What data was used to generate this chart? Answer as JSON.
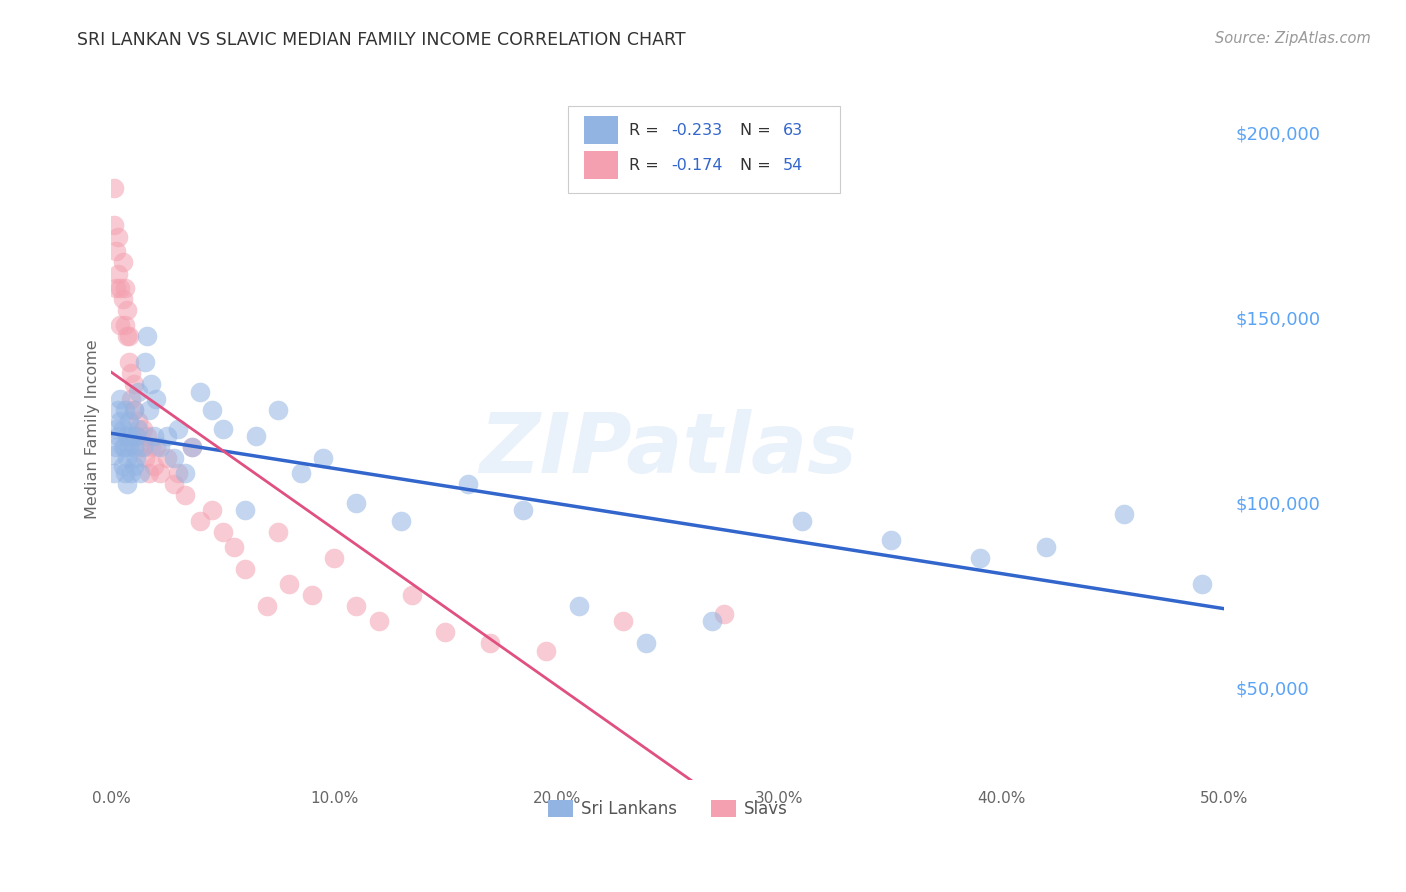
{
  "title": "SRI LANKAN VS SLAVIC MEDIAN FAMILY INCOME CORRELATION CHART",
  "source": "Source: ZipAtlas.com",
  "ylabel": "Median Family Income",
  "watermark": "ZIPatlas",
  "xlim": [
    0.0,
    0.5
  ],
  "ylim": [
    25000,
    215000
  ],
  "xtick_labels": [
    "0.0%",
    "10.0%",
    "20.0%",
    "30.0%",
    "40.0%",
    "50.0%"
  ],
  "xtick_values": [
    0.0,
    0.1,
    0.2,
    0.3,
    0.4,
    0.5
  ],
  "ytick_values": [
    50000,
    100000,
    150000,
    200000
  ],
  "ytick_labels": [
    "$50,000",
    "$100,000",
    "$150,000",
    "$200,000"
  ],
  "legend1_label": "Sri Lankans",
  "legend2_label": "Slavs",
  "sri_lankan_color": "#92B4E3",
  "slav_color": "#F4A0B0",
  "background_color": "#ffffff",
  "grid_color": "#cccccc",
  "title_color": "#333333",
  "right_ytick_color": "#5ba3f5",
  "trend_sri_color": "#3366CC",
  "trend_slav_color": "#E05080",
  "sri_lankans_x": [
    0.001,
    0.001,
    0.002,
    0.002,
    0.003,
    0.003,
    0.004,
    0.004,
    0.005,
    0.005,
    0.005,
    0.006,
    0.006,
    0.006,
    0.007,
    0.007,
    0.007,
    0.008,
    0.008,
    0.009,
    0.009,
    0.01,
    0.01,
    0.01,
    0.011,
    0.011,
    0.012,
    0.012,
    0.013,
    0.014,
    0.015,
    0.016,
    0.017,
    0.018,
    0.019,
    0.02,
    0.022,
    0.025,
    0.028,
    0.03,
    0.033,
    0.036,
    0.04,
    0.045,
    0.05,
    0.06,
    0.065,
    0.075,
    0.085,
    0.095,
    0.11,
    0.13,
    0.16,
    0.185,
    0.21,
    0.24,
    0.27,
    0.31,
    0.35,
    0.39,
    0.42,
    0.455,
    0.49
  ],
  "sri_lankans_y": [
    113000,
    108000,
    120000,
    115000,
    125000,
    118000,
    128000,
    122000,
    115000,
    110000,
    120000,
    108000,
    115000,
    125000,
    112000,
    118000,
    105000,
    122000,
    115000,
    118000,
    108000,
    115000,
    125000,
    110000,
    118000,
    112000,
    130000,
    120000,
    108000,
    115000,
    138000,
    145000,
    125000,
    132000,
    118000,
    128000,
    115000,
    118000,
    112000,
    120000,
    108000,
    115000,
    130000,
    125000,
    120000,
    98000,
    118000,
    125000,
    108000,
    112000,
    100000,
    95000,
    105000,
    98000,
    72000,
    62000,
    68000,
    95000,
    90000,
    85000,
    88000,
    97000,
    78000
  ],
  "slavs_x": [
    0.001,
    0.001,
    0.002,
    0.002,
    0.003,
    0.003,
    0.004,
    0.004,
    0.005,
    0.005,
    0.006,
    0.006,
    0.007,
    0.007,
    0.008,
    0.008,
    0.009,
    0.009,
    0.01,
    0.01,
    0.011,
    0.012,
    0.013,
    0.014,
    0.015,
    0.016,
    0.017,
    0.018,
    0.019,
    0.02,
    0.022,
    0.025,
    0.028,
    0.03,
    0.033,
    0.036,
    0.04,
    0.045,
    0.05,
    0.055,
    0.06,
    0.07,
    0.075,
    0.08,
    0.09,
    0.1,
    0.11,
    0.12,
    0.135,
    0.15,
    0.17,
    0.195,
    0.23,
    0.275
  ],
  "slavs_y": [
    175000,
    185000,
    168000,
    158000,
    162000,
    172000,
    148000,
    158000,
    155000,
    165000,
    148000,
    158000,
    145000,
    152000,
    138000,
    145000,
    128000,
    135000,
    125000,
    132000,
    118000,
    122000,
    115000,
    120000,
    112000,
    118000,
    108000,
    115000,
    110000,
    115000,
    108000,
    112000,
    105000,
    108000,
    102000,
    115000,
    95000,
    98000,
    92000,
    88000,
    82000,
    72000,
    92000,
    78000,
    75000,
    85000,
    72000,
    68000,
    75000,
    65000,
    62000,
    60000,
    68000,
    70000
  ]
}
